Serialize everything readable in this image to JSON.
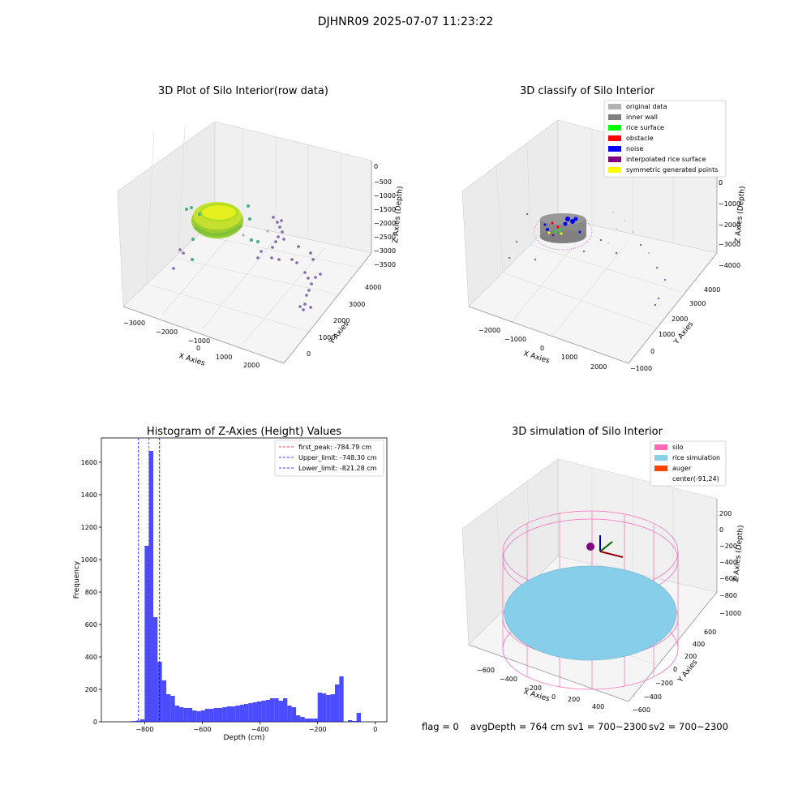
{
  "suptitle": "DJHNR09 2025-07-07 11:23:22",
  "colors": {
    "original": "#b3b3b3",
    "wall": "#808080",
    "rice": "#00ff00",
    "obstacle": "#ff0000",
    "noise": "#0000ff",
    "interp": "#800080",
    "symmetric": "#ffff00",
    "silo": "#ff69b4",
    "rice_sim": "#87ceeb",
    "auger": "#ff4500",
    "hist_bar": "#0000ff",
    "first_peak": "#ff0000",
    "limits": "#0000ff"
  },
  "panel1": {
    "title": "3D Plot of Silo Interior(row data)",
    "xlabel": "X Axies",
    "ylabel": "Y Axies",
    "zlabel": "Z Axies (Depth)",
    "xticks": [
      "−3000",
      "−2000",
      "−1000",
      "0",
      "1000",
      "2000"
    ],
    "yticks": [
      "0",
      "1000",
      "2000",
      "3000",
      "4000"
    ],
    "zticks": [
      "0",
      "−500",
      "−1000",
      "−1500",
      "−2000",
      "−2500",
      "−3000",
      "−3500"
    ]
  },
  "panel2": {
    "title": "3D classify of Silo Interior",
    "xlabel": "X Axies",
    "ylabel": "Y Axies",
    "zlabel": "Z Axies (Depth)",
    "xticks": [
      "−2000",
      "−1000",
      "0",
      "1000",
      "2000"
    ],
    "yticks": [
      "−1000",
      "0",
      "1000",
      "2000",
      "3000",
      "4000"
    ],
    "zticks": [
      "0",
      "−1000",
      "−2000",
      "−3000",
      "−4000"
    ],
    "legend": [
      {
        "label": "original data",
        "color": "#b3b3b3"
      },
      {
        "label": "inner wall",
        "color": "#808080"
      },
      {
        "label": "rice surface",
        "color": "#00ff00"
      },
      {
        "label": "obstacle",
        "color": "#ff0000"
      },
      {
        "label": "noise",
        "color": "#0000ff"
      },
      {
        "label": "interpolated rice surface",
        "color": "#800080"
      },
      {
        "label": "symmetric generated points",
        "color": "#ffff00"
      }
    ]
  },
  "panel4": {
    "title": "3D simulation of Silo Interior",
    "xlabel": "X Axies",
    "ylabel": "Y Axies",
    "zlabel": "Z Axies (Depth)",
    "xticks": [
      "−600",
      "−400",
      "−200",
      "0",
      "200",
      "400"
    ],
    "yticks": [
      "−600",
      "−400",
      "−200",
      "0",
      "200",
      "400",
      "600"
    ],
    "zticks": [
      "200",
      "0",
      "−200",
      "−400",
      "−600",
      "−800",
      "−1000"
    ],
    "legend": [
      {
        "label": "silo",
        "color": "#ff69b4"
      },
      {
        "label": "rice simulation",
        "color": "#87ceeb"
      },
      {
        "label": "auger",
        "color": "#ff4500"
      },
      {
        "label": "center(-91,24)",
        "color": ""
      }
    ]
  },
  "status": {
    "flag": "flag = 0",
    "avg": "avgDepth = 764 cm",
    "sv1": "sv1 = 700~2300",
    "sv2": "sv2 = 700~2300"
  },
  "chart_data": [
    {
      "type": "bar",
      "title": "Histogram of Z-Axies (Height) Values",
      "xlabel": "Depth (cm)",
      "ylabel": "Frequency",
      "xlim": [
        -950,
        40
      ],
      "ylim": [
        0,
        1750
      ],
      "xticks": [
        -800,
        -600,
        -400,
        -200,
        0
      ],
      "yticks": [
        0,
        200,
        400,
        600,
        800,
        1000,
        1200,
        1400,
        1600
      ],
      "bin_width": 15,
      "bins_left": [
        -860,
        -845,
        -830,
        -815,
        -800,
        -785,
        -770,
        -755,
        -740,
        -725,
        -710,
        -695,
        -680,
        -665,
        -650,
        -635,
        -620,
        -605,
        -590,
        -575,
        -560,
        -545,
        -530,
        -515,
        -500,
        -485,
        -470,
        -455,
        -440,
        -425,
        -410,
        -395,
        -380,
        -365,
        -350,
        -335,
        -320,
        -305,
        -290,
        -275,
        -260,
        -245,
        -230,
        -215,
        -200,
        -185,
        -170,
        -155,
        -140,
        -125,
        -110,
        -95,
        -80,
        -65,
        -50,
        -35,
        -20
      ],
      "values": [
        2,
        4,
        8,
        15,
        1085,
        1670,
        645,
        370,
        255,
        170,
        160,
        100,
        90,
        85,
        85,
        70,
        65,
        70,
        80,
        80,
        85,
        85,
        90,
        95,
        95,
        100,
        105,
        110,
        115,
        120,
        125,
        130,
        135,
        145,
        145,
        130,
        145,
        100,
        90,
        40,
        30,
        20,
        20,
        20,
        180,
        175,
        165,
        170,
        230,
        280,
        0,
        10,
        5,
        55,
        0,
        0,
        0
      ],
      "vlines": [
        {
          "label": "first_peak: -784.79 cm",
          "x": -784.79,
          "color": "#ff0000",
          "style": "dashed"
        },
        {
          "label": "Upper_limit: -748.30 cm",
          "x": -748.3,
          "color": "#0000ff",
          "style": "dashed"
        },
        {
          "label": "Lower_limit: -821.28 cm",
          "x": -821.28,
          "color": "#0000ff",
          "style": "dashed"
        }
      ],
      "legend_position": "upper right"
    }
  ]
}
